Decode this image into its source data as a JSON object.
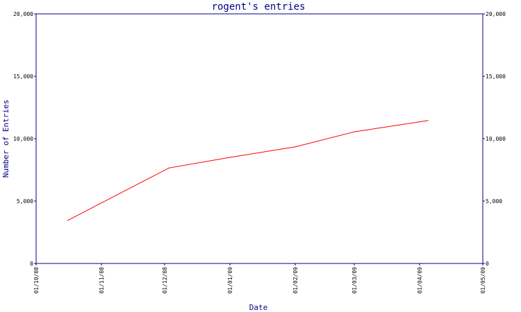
{
  "chart_data": {
    "type": "line",
    "title": "rogent's entries",
    "xlabel": "Date",
    "ylabel": "Number of Entries",
    "x_ticks": [
      "01/10/08",
      "01/11/08",
      "01/12/08",
      "01/01/09",
      "01/02/09",
      "01/03/09",
      "01/04/09",
      "01/05/09"
    ],
    "y_ticks": [
      "0",
      "5,000",
      "10,000",
      "15,000",
      "20,000"
    ],
    "xlim": [
      "2008-10-01",
      "2009-05-01"
    ],
    "ylim": [
      0,
      20000
    ],
    "grid": false,
    "series": [
      {
        "color": "#ff0000",
        "points": [
          {
            "x": "2008-10-16",
            "y": 3450
          },
          {
            "x": "2008-12-03",
            "y": 7650
          },
          {
            "x": "2009-01-01",
            "y": 8500
          },
          {
            "x": "2009-02-01",
            "y": 9350
          },
          {
            "x": "2009-03-01",
            "y": 10550
          },
          {
            "x": "2009-04-05",
            "y": 11450
          }
        ]
      }
    ],
    "colors": {
      "axis": "#000080",
      "text": "#000080",
      "tick_label": "#000000"
    }
  }
}
